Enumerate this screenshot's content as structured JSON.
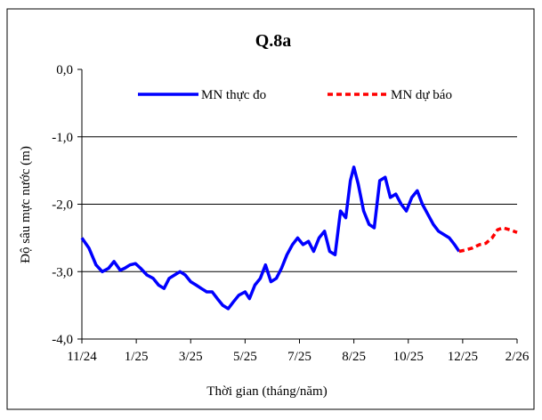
{
  "chart_data": {
    "type": "line",
    "title": "Q.8a",
    "x_label": "Thời gian (tháng/năm)",
    "y_label": "Độ sâu mực nước (m)",
    "xlim": [
      0,
      16
    ],
    "ylim": [
      -4,
      0
    ],
    "xticks": [
      {
        "value": 0,
        "label": "11/24"
      },
      {
        "value": 2,
        "label": "1/25"
      },
      {
        "value": 4,
        "label": "3/25"
      },
      {
        "value": 6,
        "label": "5/25"
      },
      {
        "value": 8,
        "label": "7/25"
      },
      {
        "value": 10,
        "label": "8/25"
      },
      {
        "value": 12,
        "label": "10/25"
      },
      {
        "value": 14,
        "label": "12/25"
      },
      {
        "value": 16,
        "label": "2/26"
      }
    ],
    "yticks": [
      {
        "value": -4,
        "label": "-4,0"
      },
      {
        "value": -3,
        "label": "-3,0"
      },
      {
        "value": -2,
        "label": "-2,0"
      },
      {
        "value": -1,
        "label": "-1,0"
      },
      {
        "value": 0,
        "label": "0,0"
      }
    ],
    "grid": true,
    "series": [
      {
        "name": "MN thực đo",
        "color": "#0000ff",
        "dashed": false,
        "x": [
          0,
          0.26,
          0.52,
          0.75,
          0.98,
          1.18,
          1.41,
          1.57,
          1.77,
          1.97,
          2.16,
          2.39,
          2.62,
          2.82,
          3.02,
          3.21,
          3.41,
          3.61,
          3.8,
          4.0,
          4.2,
          4.39,
          4.59,
          4.79,
          4.98,
          5.18,
          5.38,
          5.57,
          5.77,
          6.0,
          6.16,
          6.36,
          6.56,
          6.75,
          6.95,
          7.15,
          7.34,
          7.54,
          7.74,
          7.93,
          8.13,
          8.33,
          8.52,
          8.72,
          8.92,
          9.11,
          9.31,
          9.51,
          9.7,
          9.87,
          10.0,
          10.16,
          10.36,
          10.56,
          10.75,
          10.95,
          11.15,
          11.34,
          11.54,
          11.74,
          11.93,
          12.13,
          12.33,
          12.52,
          12.72,
          12.92,
          13.11,
          13.31,
          13.51,
          13.7,
          13.87
        ],
        "values": [
          -2.5,
          -2.65,
          -2.9,
          -3.0,
          -2.95,
          -2.85,
          -2.98,
          -2.95,
          -2.9,
          -2.88,
          -2.95,
          -3.05,
          -3.1,
          -3.2,
          -3.25,
          -3.1,
          -3.05,
          -3.0,
          -3.05,
          -3.15,
          -3.2,
          -3.25,
          -3.3,
          -3.3,
          -3.4,
          -3.5,
          -3.55,
          -3.45,
          -3.35,
          -3.3,
          -3.4,
          -3.2,
          -3.1,
          -2.9,
          -3.15,
          -3.1,
          -2.95,
          -2.75,
          -2.6,
          -2.5,
          -2.6,
          -2.55,
          -2.7,
          -2.5,
          -2.4,
          -2.7,
          -2.75,
          -2.1,
          -2.2,
          -1.65,
          -1.45,
          -1.7,
          -2.1,
          -2.3,
          -2.35,
          -1.65,
          -1.6,
          -1.9,
          -1.85,
          -2.0,
          -2.1,
          -1.9,
          -1.8,
          -2.0,
          -2.15,
          -2.3,
          -2.4,
          -2.45,
          -2.5,
          -2.6,
          -2.7
        ]
      },
      {
        "name": "MN dự báo",
        "color": "#ff0000",
        "dashed": true,
        "x": [
          13.87,
          14.1,
          14.36,
          14.62,
          14.85,
          15.08,
          15.28,
          15.48,
          15.74,
          16.0
        ],
        "values": [
          -2.7,
          -2.68,
          -2.65,
          -2.6,
          -2.58,
          -2.5,
          -2.38,
          -2.35,
          -2.38,
          -2.42
        ]
      }
    ]
  }
}
